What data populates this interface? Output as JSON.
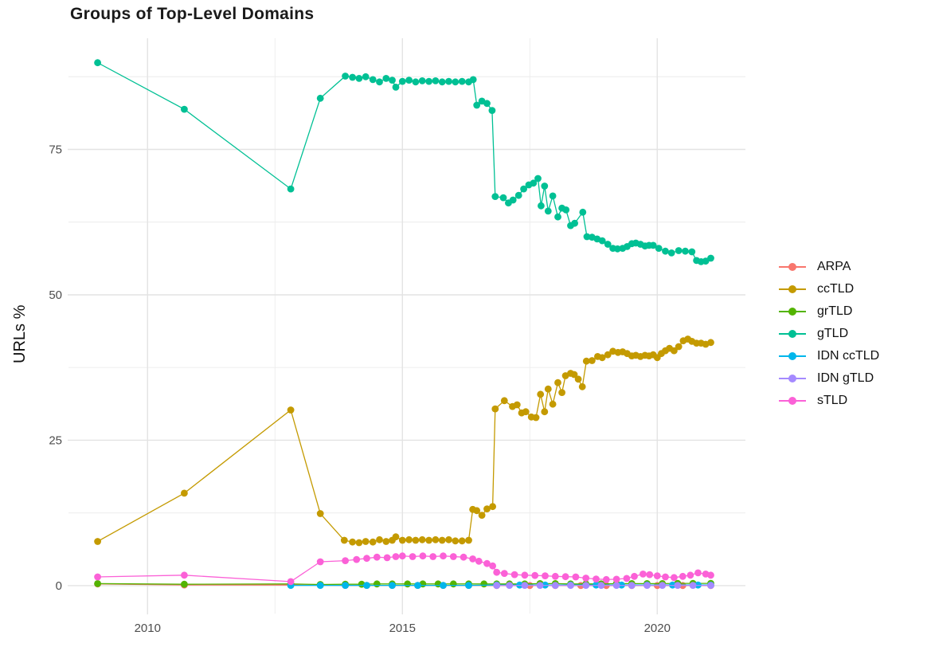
{
  "page": {
    "background": "#ffffff"
  },
  "chart_data": {
    "type": "line",
    "title": "Groups of Top-Level Domains",
    "xlabel": "",
    "ylabel": "URLs %",
    "legend_position": "right",
    "grid": {
      "visible": true,
      "x_minor": [
        2012.5,
        2017.5
      ],
      "y_minor": [
        12.5,
        37.5,
        62.5,
        87.5
      ],
      "major_color": "#e3e3e3",
      "minor_color": "#ececec"
    },
    "xlim": [
      2008.48,
      2021.73
    ],
    "ylim": [
      -4.25,
      94.11
    ],
    "x_ticks": [
      {
        "value": 2010,
        "label": "2010"
      },
      {
        "value": 2015,
        "label": "2015"
      },
      {
        "value": 2020,
        "label": "2020"
      }
    ],
    "y_ticks": [
      {
        "value": 0,
        "label": "0"
      },
      {
        "value": 25,
        "label": "25"
      },
      {
        "value": 50,
        "label": "50"
      },
      {
        "value": 75,
        "label": "75"
      }
    ],
    "series": [
      {
        "name": "ARPA",
        "color": "#F8766D",
        "points": [
          [
            2009.02,
            0.3
          ],
          [
            2010.72,
            0.12
          ],
          [
            2012.81,
            0.1
          ],
          [
            2013.39,
            0.08
          ],
          [
            2013.88,
            0.05
          ],
          [
            2014.3,
            0.05
          ],
          [
            2014.8,
            0.05
          ],
          [
            2015.3,
            0.05
          ],
          [
            2015.8,
            0.05
          ],
          [
            2016.3,
            0.05
          ],
          [
            2016.85,
            0.03
          ],
          [
            2017.5,
            0.03
          ],
          [
            2018.0,
            0.03
          ],
          [
            2018.5,
            0.03
          ],
          [
            2019.0,
            0.03
          ],
          [
            2019.5,
            0.03
          ],
          [
            2020.0,
            0.03
          ],
          [
            2020.5,
            0.03
          ],
          [
            2021.05,
            0.03
          ]
        ]
      },
      {
        "name": "ccTLD",
        "color": "#C49A00",
        "points": [
          [
            2009.02,
            7.6
          ],
          [
            2010.72,
            15.9
          ],
          [
            2012.81,
            30.2
          ],
          [
            2013.39,
            12.4
          ],
          [
            2013.86,
            7.8
          ],
          [
            2014.02,
            7.5
          ],
          [
            2014.15,
            7.4
          ],
          [
            2014.28,
            7.6
          ],
          [
            2014.42,
            7.5
          ],
          [
            2014.55,
            7.9
          ],
          [
            2014.68,
            7.6
          ],
          [
            2014.8,
            7.8
          ],
          [
            2014.87,
            8.4
          ],
          [
            2015.0,
            7.8
          ],
          [
            2015.13,
            7.9
          ],
          [
            2015.26,
            7.8
          ],
          [
            2015.39,
            7.9
          ],
          [
            2015.52,
            7.8
          ],
          [
            2015.65,
            7.9
          ],
          [
            2015.78,
            7.8
          ],
          [
            2015.91,
            7.9
          ],
          [
            2016.04,
            7.7
          ],
          [
            2016.17,
            7.7
          ],
          [
            2016.3,
            7.8
          ],
          [
            2016.38,
            13.1
          ],
          [
            2016.46,
            12.9
          ],
          [
            2016.56,
            12.1
          ],
          [
            2016.66,
            13.2
          ],
          [
            2016.77,
            13.6
          ],
          [
            2016.82,
            30.4
          ],
          [
            2017.0,
            31.8
          ],
          [
            2017.16,
            30.8
          ],
          [
            2017.25,
            31.1
          ],
          [
            2017.34,
            29.7
          ],
          [
            2017.42,
            29.9
          ],
          [
            2017.53,
            29.0
          ],
          [
            2017.62,
            28.9
          ],
          [
            2017.71,
            32.9
          ],
          [
            2017.79,
            29.9
          ],
          [
            2017.86,
            33.8
          ],
          [
            2017.95,
            31.2
          ],
          [
            2018.05,
            34.9
          ],
          [
            2018.13,
            33.2
          ],
          [
            2018.2,
            36.1
          ],
          [
            2018.3,
            36.5
          ],
          [
            2018.37,
            36.3
          ],
          [
            2018.45,
            35.5
          ],
          [
            2018.53,
            34.2
          ],
          [
            2018.61,
            38.6
          ],
          [
            2018.72,
            38.7
          ],
          [
            2018.83,
            39.4
          ],
          [
            2018.92,
            39.2
          ],
          [
            2019.03,
            39.7
          ],
          [
            2019.13,
            40.3
          ],
          [
            2019.23,
            40.1
          ],
          [
            2019.32,
            40.2
          ],
          [
            2019.41,
            39.9
          ],
          [
            2019.5,
            39.5
          ],
          [
            2019.58,
            39.6
          ],
          [
            2019.67,
            39.4
          ],
          [
            2019.76,
            39.6
          ],
          [
            2019.84,
            39.5
          ],
          [
            2019.92,
            39.7
          ],
          [
            2020.0,
            39.2
          ],
          [
            2020.08,
            39.9
          ],
          [
            2020.16,
            40.4
          ],
          [
            2020.24,
            40.8
          ],
          [
            2020.33,
            40.4
          ],
          [
            2020.42,
            41.1
          ],
          [
            2020.51,
            42.1
          ],
          [
            2020.6,
            42.4
          ],
          [
            2020.68,
            42.0
          ],
          [
            2020.77,
            41.7
          ],
          [
            2020.86,
            41.7
          ],
          [
            2020.95,
            41.5
          ],
          [
            2021.05,
            41.8
          ]
        ]
      },
      {
        "name": "grTLD",
        "color": "#53B400",
        "points": [
          [
            2009.02,
            0.35
          ],
          [
            2010.72,
            0.25
          ],
          [
            2012.81,
            0.3
          ],
          [
            2013.39,
            0.2
          ],
          [
            2013.88,
            0.25
          ],
          [
            2014.2,
            0.25
          ],
          [
            2014.5,
            0.3
          ],
          [
            2014.8,
            0.3
          ],
          [
            2015.1,
            0.3
          ],
          [
            2015.4,
            0.3
          ],
          [
            2015.7,
            0.3
          ],
          [
            2016.0,
            0.3
          ],
          [
            2016.3,
            0.3
          ],
          [
            2016.6,
            0.3
          ],
          [
            2016.85,
            0.3
          ],
          [
            2017.1,
            0.3
          ],
          [
            2017.4,
            0.3
          ],
          [
            2017.7,
            0.35
          ],
          [
            2018.0,
            0.35
          ],
          [
            2018.3,
            0.3
          ],
          [
            2018.6,
            0.3
          ],
          [
            2018.9,
            0.3
          ],
          [
            2019.2,
            0.35
          ],
          [
            2019.5,
            0.35
          ],
          [
            2019.8,
            0.35
          ],
          [
            2020.1,
            0.35
          ],
          [
            2020.4,
            0.4
          ],
          [
            2020.7,
            0.4
          ],
          [
            2021.05,
            0.4
          ]
        ]
      },
      {
        "name": "gTLD",
        "color": "#00C094",
        "points": [
          [
            2009.02,
            89.9
          ],
          [
            2010.72,
            81.9
          ],
          [
            2012.81,
            68.2
          ],
          [
            2013.39,
            83.8
          ],
          [
            2013.88,
            87.6
          ],
          [
            2014.02,
            87.4
          ],
          [
            2014.15,
            87.2
          ],
          [
            2014.28,
            87.5
          ],
          [
            2014.42,
            87.0
          ],
          [
            2014.55,
            86.6
          ],
          [
            2014.68,
            87.2
          ],
          [
            2014.8,
            86.9
          ],
          [
            2014.87,
            85.7
          ],
          [
            2015.0,
            86.7
          ],
          [
            2015.13,
            86.9
          ],
          [
            2015.26,
            86.6
          ],
          [
            2015.39,
            86.8
          ],
          [
            2015.52,
            86.7
          ],
          [
            2015.65,
            86.8
          ],
          [
            2015.78,
            86.6
          ],
          [
            2015.91,
            86.7
          ],
          [
            2016.04,
            86.6
          ],
          [
            2016.17,
            86.7
          ],
          [
            2016.3,
            86.6
          ],
          [
            2016.39,
            87.0
          ],
          [
            2016.46,
            82.6
          ],
          [
            2016.56,
            83.3
          ],
          [
            2016.66,
            82.9
          ],
          [
            2016.76,
            81.7
          ],
          [
            2016.82,
            66.9
          ],
          [
            2016.98,
            66.7
          ],
          [
            2017.08,
            65.8
          ],
          [
            2017.17,
            66.3
          ],
          [
            2017.28,
            67.1
          ],
          [
            2017.38,
            68.2
          ],
          [
            2017.48,
            68.9
          ],
          [
            2017.57,
            69.2
          ],
          [
            2017.66,
            70.0
          ],
          [
            2017.72,
            65.3
          ],
          [
            2017.79,
            68.7
          ],
          [
            2017.86,
            64.4
          ],
          [
            2017.95,
            67.0
          ],
          [
            2018.05,
            63.4
          ],
          [
            2018.13,
            64.9
          ],
          [
            2018.21,
            64.6
          ],
          [
            2018.3,
            61.9
          ],
          [
            2018.38,
            62.3
          ],
          [
            2018.54,
            64.2
          ],
          [
            2018.62,
            60.0
          ],
          [
            2018.72,
            59.9
          ],
          [
            2018.82,
            59.6
          ],
          [
            2018.92,
            59.3
          ],
          [
            2019.03,
            58.7
          ],
          [
            2019.13,
            58.0
          ],
          [
            2019.22,
            57.9
          ],
          [
            2019.32,
            58.0
          ],
          [
            2019.41,
            58.3
          ],
          [
            2019.5,
            58.8
          ],
          [
            2019.58,
            58.9
          ],
          [
            2019.67,
            58.7
          ],
          [
            2019.76,
            58.4
          ],
          [
            2019.84,
            58.5
          ],
          [
            2019.92,
            58.5
          ],
          [
            2020.03,
            58.0
          ],
          [
            2020.16,
            57.5
          ],
          [
            2020.28,
            57.2
          ],
          [
            2020.42,
            57.6
          ],
          [
            2020.55,
            57.5
          ],
          [
            2020.68,
            57.4
          ],
          [
            2020.77,
            55.9
          ],
          [
            2020.86,
            55.7
          ],
          [
            2020.95,
            55.8
          ],
          [
            2021.05,
            56.3
          ]
        ]
      },
      {
        "name": "IDN ccTLD",
        "color": "#00B6EB",
        "points": [
          [
            2012.81,
            0.05
          ],
          [
            2013.39,
            0.05
          ],
          [
            2013.88,
            0.05
          ],
          [
            2014.3,
            0.05
          ],
          [
            2014.8,
            0.05
          ],
          [
            2015.3,
            0.05
          ],
          [
            2015.8,
            0.05
          ],
          [
            2016.3,
            0.05
          ],
          [
            2016.85,
            0.1
          ],
          [
            2017.3,
            0.1
          ],
          [
            2017.8,
            0.1
          ],
          [
            2018.3,
            0.1
          ],
          [
            2018.8,
            0.1
          ],
          [
            2019.3,
            0.1
          ],
          [
            2019.8,
            0.1
          ],
          [
            2020.3,
            0.1
          ],
          [
            2020.8,
            0.1
          ],
          [
            2021.05,
            0.1
          ]
        ]
      },
      {
        "name": "IDN gTLD",
        "color": "#A58AFF",
        "points": [
          [
            2016.85,
            0.05
          ],
          [
            2017.1,
            0.05
          ],
          [
            2017.4,
            0.05
          ],
          [
            2017.7,
            0.05
          ],
          [
            2018.0,
            0.05
          ],
          [
            2018.3,
            0.05
          ],
          [
            2018.6,
            0.05
          ],
          [
            2018.9,
            0.05
          ],
          [
            2019.2,
            0.05
          ],
          [
            2019.5,
            0.05
          ],
          [
            2019.8,
            0.05
          ],
          [
            2020.1,
            0.05
          ],
          [
            2020.4,
            0.05
          ],
          [
            2020.7,
            0.05
          ],
          [
            2021.05,
            0.05
          ]
        ]
      },
      {
        "name": "sTLD",
        "color": "#FB61D7",
        "points": [
          [
            2009.02,
            1.5
          ],
          [
            2010.72,
            1.8
          ],
          [
            2012.81,
            0.7
          ],
          [
            2013.39,
            4.1
          ],
          [
            2013.88,
            4.3
          ],
          [
            2014.1,
            4.5
          ],
          [
            2014.3,
            4.7
          ],
          [
            2014.5,
            4.9
          ],
          [
            2014.7,
            4.8
          ],
          [
            2014.87,
            5.0
          ],
          [
            2015.0,
            5.1
          ],
          [
            2015.2,
            5.0
          ],
          [
            2015.4,
            5.1
          ],
          [
            2015.6,
            5.0
          ],
          [
            2015.8,
            5.1
          ],
          [
            2016.0,
            5.0
          ],
          [
            2016.2,
            4.9
          ],
          [
            2016.38,
            4.6
          ],
          [
            2016.5,
            4.2
          ],
          [
            2016.66,
            3.8
          ],
          [
            2016.77,
            3.4
          ],
          [
            2016.85,
            2.3
          ],
          [
            2017.0,
            2.1
          ],
          [
            2017.2,
            1.9
          ],
          [
            2017.4,
            1.8
          ],
          [
            2017.6,
            1.75
          ],
          [
            2017.8,
            1.7
          ],
          [
            2018.0,
            1.6
          ],
          [
            2018.2,
            1.55
          ],
          [
            2018.4,
            1.5
          ],
          [
            2018.6,
            1.3
          ],
          [
            2018.8,
            1.15
          ],
          [
            2019.0,
            1.05
          ],
          [
            2019.2,
            1.1
          ],
          [
            2019.4,
            1.25
          ],
          [
            2019.55,
            1.6
          ],
          [
            2019.72,
            2.0
          ],
          [
            2019.85,
            1.9
          ],
          [
            2020.0,
            1.7
          ],
          [
            2020.16,
            1.5
          ],
          [
            2020.33,
            1.4
          ],
          [
            2020.5,
            1.6
          ],
          [
            2020.65,
            1.8
          ],
          [
            2020.8,
            2.2
          ],
          [
            2020.95,
            2.0
          ],
          [
            2021.05,
            1.8
          ]
        ]
      }
    ]
  }
}
